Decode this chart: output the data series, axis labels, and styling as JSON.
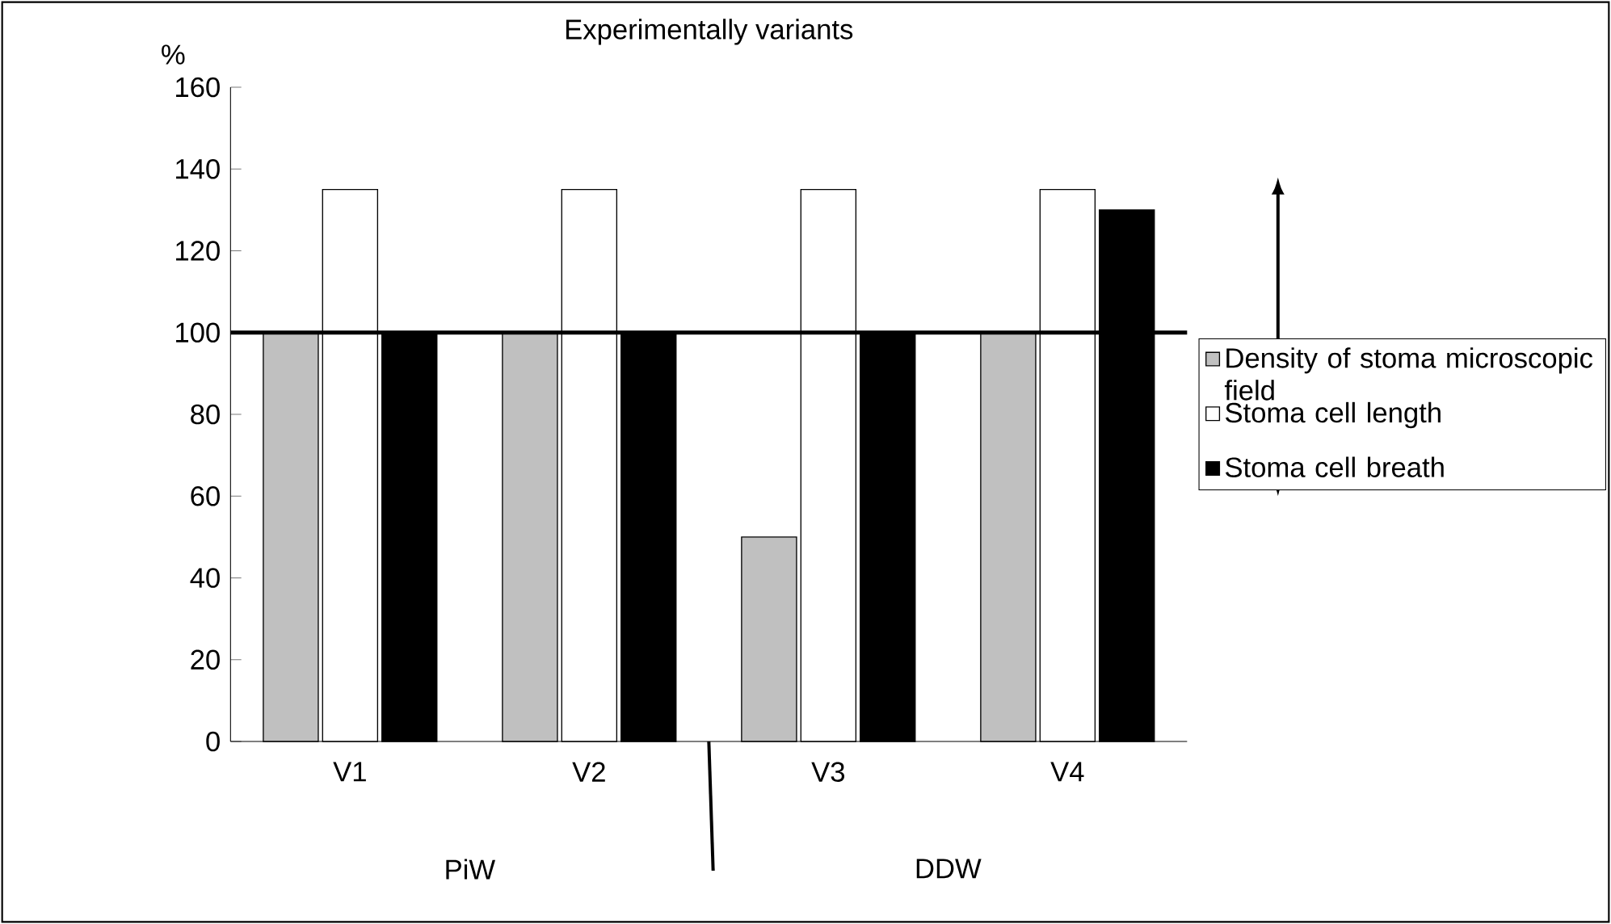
{
  "chart_data": {
    "type": "bar",
    "title": "Experimentally variants",
    "ylabel": "%",
    "categories": [
      "V1",
      "V2",
      "V3",
      "V4"
    ],
    "series": [
      {
        "name": "Density of stoma microscopic field",
        "color": "#c0c0c0",
        "values": [
          100,
          100,
          50,
          100
        ]
      },
      {
        "name": "Stoma cell length",
        "color": "#ffffff",
        "values": [
          135,
          135,
          135,
          135
        ]
      },
      {
        "name": "Stoma cell  breath",
        "color": "#000000",
        "values": [
          100,
          100,
          100,
          130
        ]
      }
    ],
    "ylim": [
      0,
      160
    ],
    "yticks": [
      0,
      20,
      40,
      60,
      80,
      100,
      120,
      140,
      160
    ],
    "ref_lines": [
      {
        "axis": "y",
        "value": 100,
        "color": "#000000"
      }
    ],
    "annotations": [
      "PiW",
      "DDW"
    ],
    "grid": false,
    "legend": "right"
  }
}
